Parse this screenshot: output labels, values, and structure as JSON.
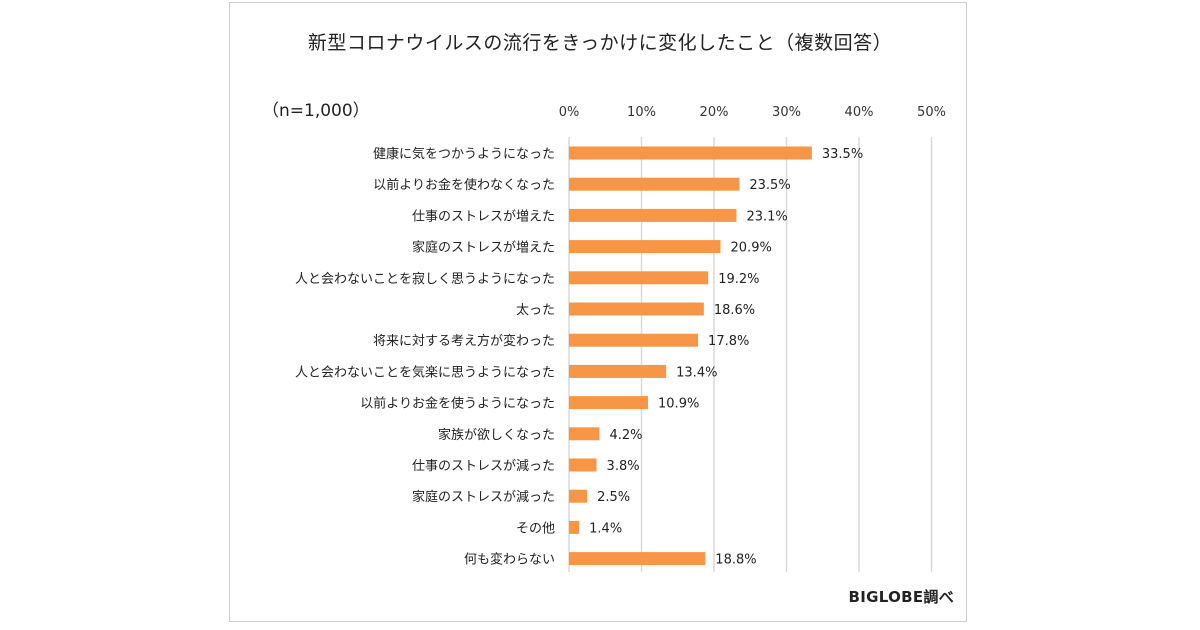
{
  "chart_data": {
    "type": "bar",
    "orientation": "horizontal",
    "title": "新型コロナウイルスの流行をきっかけに変化したこと（複数回答）",
    "note": "（n=1,000）",
    "source": "BIGLOBE調べ",
    "xlim": [
      0,
      50
    ],
    "ticks": [
      "0%",
      "10%",
      "20%",
      "30%",
      "40%",
      "50%"
    ],
    "tick_values": [
      0,
      10,
      20,
      30,
      40,
      50
    ],
    "grid": true,
    "bar_color": "#F79646",
    "categories": [
      "健康に気をつかうようになった",
      "以前よりお金を使わなくなった",
      "仕事のストレスが増えた",
      "家庭のストレスが増えた",
      "人と会わないことを寂しく思うようになった",
      "太った",
      "将来に対する考え方が変わった",
      "人と会わないことを気楽に思うようになった",
      "以前よりお金を使うようになった",
      "家族が欲しくなった",
      "仕事のストレスが減った",
      "家庭のストレスが減った",
      "その他",
      "何も変わらない"
    ],
    "values": [
      33.5,
      23.5,
      23.1,
      20.9,
      19.2,
      18.6,
      17.8,
      13.4,
      10.9,
      4.2,
      3.8,
      2.5,
      1.4,
      18.8
    ],
    "value_labels": [
      "33.5%",
      "23.5%",
      "23.1%",
      "20.9%",
      "19.2%",
      "18.6%",
      "17.8%",
      "13.4%",
      "10.9%",
      "4.2%",
      "3.8%",
      "2.5%",
      "1.4%",
      "18.8%"
    ]
  }
}
